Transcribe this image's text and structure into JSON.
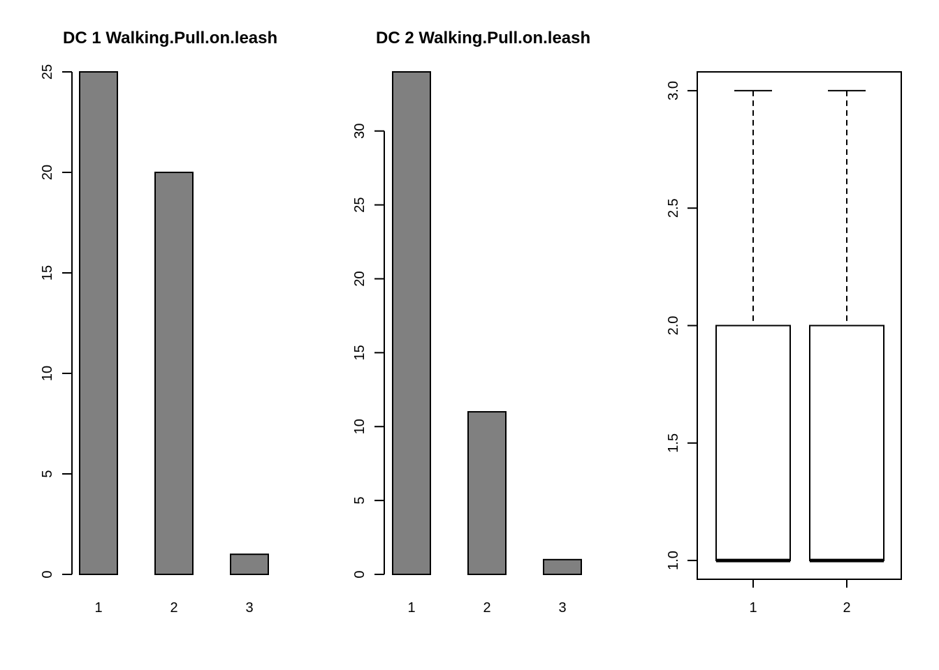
{
  "chart_data": [
    {
      "type": "bar",
      "title": "DC 1 Walking.Pull.on.leash",
      "categories": [
        "1",
        "2",
        "3"
      ],
      "values": [
        25,
        20,
        1
      ],
      "ylim": [
        0,
        25
      ],
      "yticks": [
        "0",
        "5",
        "10",
        "15",
        "20",
        "25"
      ],
      "bar_color": "#808080",
      "xlabel": "",
      "ylabel": ""
    },
    {
      "type": "bar",
      "title": "DC 2 Walking.Pull.on.leash",
      "categories": [
        "1",
        "2",
        "3"
      ],
      "values": [
        34,
        11,
        1
      ],
      "ylim": [
        0,
        34
      ],
      "yticks": [
        "0",
        "5",
        "10",
        "15",
        "20",
        "25",
        "30"
      ],
      "bar_color": "#808080",
      "xlabel": "",
      "ylabel": ""
    },
    {
      "type": "boxplot",
      "title": "",
      "categories": [
        "1",
        "2"
      ],
      "boxes": [
        {
          "min": 1,
          "q1": 1,
          "median": 1,
          "q3": 2,
          "max": 3
        },
        {
          "min": 1,
          "q1": 1,
          "median": 1,
          "q3": 2,
          "max": 3
        }
      ],
      "ylim": [
        0.92,
        3.08
      ],
      "yticks": [
        "1.0",
        "1.5",
        "2.0",
        "2.5",
        "3.0"
      ],
      "box_color": "#ffffff",
      "xlabel": "",
      "ylabel": ""
    }
  ]
}
